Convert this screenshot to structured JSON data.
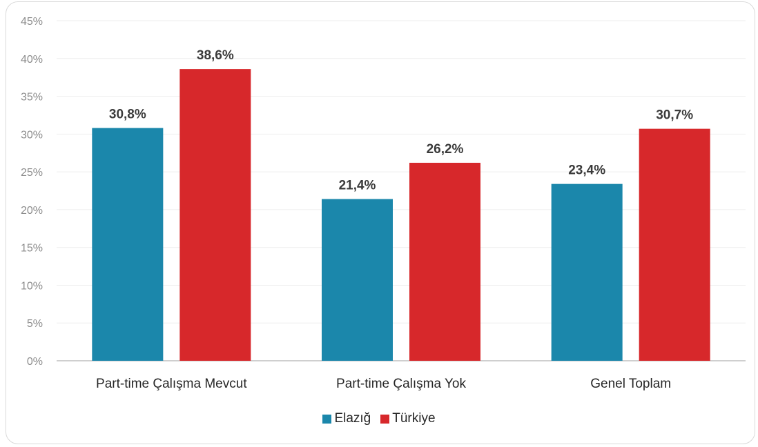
{
  "chart_data": {
    "type": "bar",
    "categories": [
      "Part-time Çalışma Mevcut",
      "Part-time Çalışma Yok",
      "Genel Toplam"
    ],
    "series": [
      {
        "name": "Elazığ",
        "color": "#1b87ab",
        "values": [
          30.8,
          21.4,
          23.4
        ],
        "labels": [
          "30,8%",
          "21,4%",
          "23,4%"
        ]
      },
      {
        "name": "Türkiye",
        "color": "#d7282b",
        "values": [
          38.6,
          26.2,
          30.7
        ],
        "labels": [
          "38,6%",
          "26,2%",
          "30,7%"
        ]
      }
    ],
    "y_ticks": [
      "0%",
      "5%",
      "10%",
      "15%",
      "20%",
      "25%",
      "30%",
      "35%",
      "40%",
      "45%"
    ],
    "ylim": [
      0,
      45
    ],
    "grid": true,
    "legend_position": "bottom"
  }
}
